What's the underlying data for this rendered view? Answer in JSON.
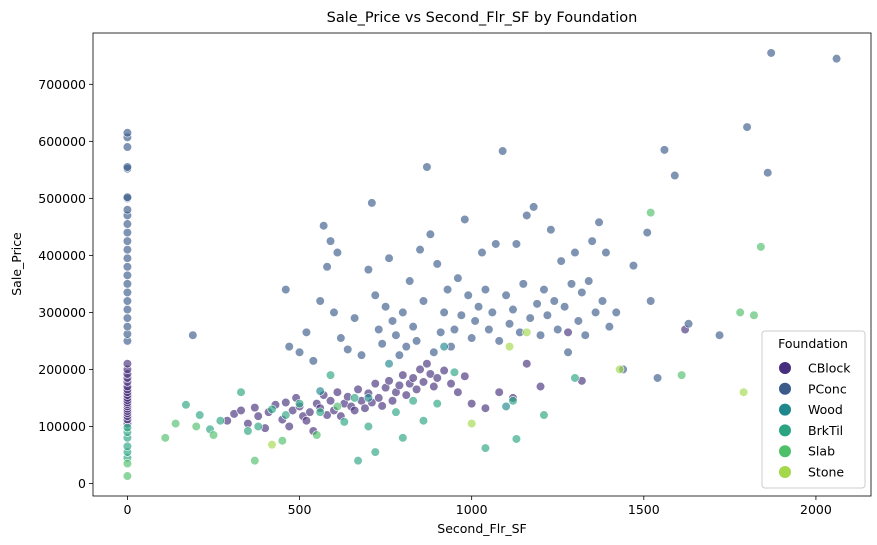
{
  "chart_data": {
    "type": "scatter",
    "title": "Sale_Price vs Second_Flr_SF by Foundation",
    "xlabel": "Second_Flr_SF",
    "ylabel": "Sale_Price",
    "xlim": [
      -100,
      2160
    ],
    "ylim": [
      -22000,
      790000
    ],
    "x_ticks": [
      0,
      500,
      1000,
      1500,
      2000
    ],
    "y_ticks": [
      0,
      100000,
      200000,
      300000,
      400000,
      500000,
      600000,
      700000
    ],
    "grid": false,
    "legend": {
      "title": "Foundation",
      "placement": "lower-right"
    },
    "series": [
      {
        "name": "CBlock",
        "color": "#472f7d",
        "points": [
          [
            0,
            105000
          ],
          [
            0,
            112000
          ],
          [
            0,
            118000
          ],
          [
            0,
            123000
          ],
          [
            0,
            127000
          ],
          [
            0,
            131000
          ],
          [
            0,
            135000
          ],
          [
            0,
            139000
          ],
          [
            0,
            142000
          ],
          [
            0,
            146000
          ],
          [
            0,
            150000
          ],
          [
            0,
            155000
          ],
          [
            0,
            160000
          ],
          [
            0,
            165000
          ],
          [
            0,
            170000
          ],
          [
            0,
            178000
          ],
          [
            0,
            185000
          ],
          [
            0,
            192000
          ],
          [
            0,
            200000
          ],
          [
            0,
            210000
          ],
          [
            290,
            110000
          ],
          [
            310,
            122000
          ],
          [
            330,
            128000
          ],
          [
            350,
            105000
          ],
          [
            370,
            133000
          ],
          [
            380,
            118000
          ],
          [
            400,
            97000
          ],
          [
            410,
            125000
          ],
          [
            430,
            138000
          ],
          [
            450,
            112000
          ],
          [
            460,
            142000
          ],
          [
            470,
            100000
          ],
          [
            480,
            128000
          ],
          [
            490,
            150000
          ],
          [
            500,
            135000
          ],
          [
            510,
            118000
          ],
          [
            520,
            110000
          ],
          [
            530,
            125000
          ],
          [
            540,
            92000
          ],
          [
            550,
            140000
          ],
          [
            560,
            132000
          ],
          [
            570,
            155000
          ],
          [
            580,
            120000
          ],
          [
            590,
            145000
          ],
          [
            600,
            128000
          ],
          [
            610,
            160000
          ],
          [
            620,
            118000
          ],
          [
            630,
            140000
          ],
          [
            640,
            152000
          ],
          [
            650,
            135000
          ],
          [
            660,
            128000
          ],
          [
            670,
            165000
          ],
          [
            680,
            145000
          ],
          [
            690,
            132000
          ],
          [
            700,
            158000
          ],
          [
            710,
            142000
          ],
          [
            720,
            175000
          ],
          [
            730,
            150000
          ],
          [
            740,
            136000
          ],
          [
            750,
            168000
          ],
          [
            760,
            180000
          ],
          [
            770,
            145000
          ],
          [
            780,
            160000
          ],
          [
            790,
            172000
          ],
          [
            800,
            190000
          ],
          [
            810,
            155000
          ],
          [
            820,
            175000
          ],
          [
            830,
            185000
          ],
          [
            840,
            165000
          ],
          [
            850,
            200000
          ],
          [
            860,
            178000
          ],
          [
            870,
            210000
          ],
          [
            880,
            192000
          ],
          [
            890,
            170000
          ],
          [
            900,
            185000
          ],
          [
            920,
            198000
          ],
          [
            940,
            175000
          ],
          [
            960,
            160000
          ],
          [
            980,
            188000
          ],
          [
            1000,
            140000
          ],
          [
            1040,
            132000
          ],
          [
            1080,
            160000
          ],
          [
            1120,
            150000
          ],
          [
            1160,
            210000
          ],
          [
            1200,
            170000
          ],
          [
            1280,
            265000
          ],
          [
            1320,
            180000
          ],
          [
            1620,
            270000
          ]
        ]
      },
      {
        "name": "PConc",
        "color": "#3b5b8b",
        "points": [
          [
            0,
            250000
          ],
          [
            0,
            262000
          ],
          [
            0,
            275000
          ],
          [
            0,
            290000
          ],
          [
            0,
            305000
          ],
          [
            0,
            320000
          ],
          [
            0,
            335000
          ],
          [
            0,
            350000
          ],
          [
            0,
            365000
          ],
          [
            0,
            380000
          ],
          [
            0,
            395000
          ],
          [
            0,
            410000
          ],
          [
            0,
            425000
          ],
          [
            0,
            440000
          ],
          [
            0,
            455000
          ],
          [
            0,
            470000
          ],
          [
            0,
            480000
          ],
          [
            0,
            500000
          ],
          [
            0,
            502000
          ],
          [
            0,
            552000
          ],
          [
            0,
            555000
          ],
          [
            0,
            590000
          ],
          [
            0,
            607000
          ],
          [
            0,
            615000
          ],
          [
            190,
            260000
          ],
          [
            460,
            340000
          ],
          [
            470,
            240000
          ],
          [
            500,
            230000
          ],
          [
            520,
            265000
          ],
          [
            540,
            215000
          ],
          [
            560,
            320000
          ],
          [
            570,
            452000
          ],
          [
            580,
            380000
          ],
          [
            590,
            425000
          ],
          [
            600,
            300000
          ],
          [
            610,
            405000
          ],
          [
            620,
            255000
          ],
          [
            640,
            235000
          ],
          [
            660,
            290000
          ],
          [
            680,
            225000
          ],
          [
            700,
            375000
          ],
          [
            710,
            492000
          ],
          [
            720,
            330000
          ],
          [
            730,
            270000
          ],
          [
            740,
            245000
          ],
          [
            750,
            310000
          ],
          [
            760,
            395000
          ],
          [
            770,
            285000
          ],
          [
            780,
            260000
          ],
          [
            790,
            225000
          ],
          [
            800,
            300000
          ],
          [
            810,
            240000
          ],
          [
            820,
            355000
          ],
          [
            830,
            275000
          ],
          [
            840,
            250000
          ],
          [
            850,
            410000
          ],
          [
            860,
            320000
          ],
          [
            870,
            555000
          ],
          [
            880,
            437000
          ],
          [
            890,
            230000
          ],
          [
            900,
            385000
          ],
          [
            910,
            265000
          ],
          [
            920,
            300000
          ],
          [
            930,
            340000
          ],
          [
            940,
            240000
          ],
          [
            950,
            270000
          ],
          [
            960,
            360000
          ],
          [
            970,
            295000
          ],
          [
            980,
            463000
          ],
          [
            990,
            330000
          ],
          [
            1000,
            255000
          ],
          [
            1010,
            285000
          ],
          [
            1020,
            310000
          ],
          [
            1030,
            405000
          ],
          [
            1040,
            340000
          ],
          [
            1050,
            270000
          ],
          [
            1060,
            300000
          ],
          [
            1070,
            420000
          ],
          [
            1080,
            250000
          ],
          [
            1090,
            583000
          ],
          [
            1100,
            330000
          ],
          [
            1110,
            280000
          ],
          [
            1120,
            305000
          ],
          [
            1130,
            420000
          ],
          [
            1140,
            265000
          ],
          [
            1150,
            350000
          ],
          [
            1160,
            470000
          ],
          [
            1170,
            290000
          ],
          [
            1180,
            485000
          ],
          [
            1190,
            315000
          ],
          [
            1200,
            260000
          ],
          [
            1210,
            340000
          ],
          [
            1220,
            295000
          ],
          [
            1230,
            445000
          ],
          [
            1240,
            320000
          ],
          [
            1250,
            270000
          ],
          [
            1260,
            390000
          ],
          [
            1270,
            310000
          ],
          [
            1280,
            230000
          ],
          [
            1290,
            350000
          ],
          [
            1300,
            405000
          ],
          [
            1310,
            285000
          ],
          [
            1320,
            335000
          ],
          [
            1330,
            260000
          ],
          [
            1340,
            355000
          ],
          [
            1350,
            425000
          ],
          [
            1360,
            300000
          ],
          [
            1370,
            458000
          ],
          [
            1380,
            320000
          ],
          [
            1390,
            405000
          ],
          [
            1400,
            275000
          ],
          [
            1420,
            300000
          ],
          [
            1440,
            200000
          ],
          [
            1470,
            382000
          ],
          [
            1510,
            440000
          ],
          [
            1520,
            320000
          ],
          [
            1540,
            185000
          ],
          [
            1560,
            585000
          ],
          [
            1590,
            540000
          ],
          [
            1630,
            280000
          ],
          [
            1720,
            260000
          ],
          [
            1800,
            625000
          ],
          [
            1860,
            545000
          ],
          [
            1870,
            755000
          ],
          [
            2060,
            745000
          ]
        ]
      },
      {
        "name": "Wood",
        "color": "#20878d",
        "points": [
          [
            560,
            162000
          ],
          [
            700,
            150000
          ],
          [
            760,
            210000
          ],
          [
            920,
            240000
          ],
          [
            1100,
            135000
          ]
        ]
      },
      {
        "name": "BrkTil",
        "color": "#2aa481",
        "points": [
          [
            0,
            45000
          ],
          [
            0,
            55000
          ],
          [
            0,
            65000
          ],
          [
            0,
            80000
          ],
          [
            0,
            90000
          ],
          [
            0,
            98000
          ],
          [
            170,
            138000
          ],
          [
            210,
            120000
          ],
          [
            240,
            95000
          ],
          [
            270,
            110000
          ],
          [
            330,
            160000
          ],
          [
            350,
            92000
          ],
          [
            380,
            100000
          ],
          [
            420,
            130000
          ],
          [
            460,
            120000
          ],
          [
            500,
            140000
          ],
          [
            560,
            125000
          ],
          [
            590,
            190000
          ],
          [
            630,
            108000
          ],
          [
            660,
            150000
          ],
          [
            670,
            40000
          ],
          [
            700,
            100000
          ],
          [
            720,
            55000
          ],
          [
            780,
            125000
          ],
          [
            800,
            80000
          ],
          [
            830,
            145000
          ],
          [
            860,
            110000
          ],
          [
            900,
            140000
          ],
          [
            950,
            195000
          ],
          [
            1040,
            62000
          ],
          [
            1120,
            145000
          ],
          [
            1130,
            78000
          ],
          [
            1210,
            120000
          ],
          [
            1300,
            185000
          ]
        ]
      },
      {
        "name": "Slab",
        "color": "#4fbf6a",
        "points": [
          [
            0,
            13000
          ],
          [
            0,
            35000
          ],
          [
            110,
            80000
          ],
          [
            140,
            105000
          ],
          [
            200,
            100000
          ],
          [
            250,
            85000
          ],
          [
            370,
            40000
          ],
          [
            450,
            75000
          ],
          [
            550,
            85000
          ],
          [
            610,
            135000
          ],
          [
            1520,
            475000
          ],
          [
            1610,
            190000
          ],
          [
            1780,
            300000
          ],
          [
            1820,
            295000
          ],
          [
            1840,
            415000
          ]
        ]
      },
      {
        "name": "Stone",
        "color": "#a2d84a",
        "points": [
          [
            420,
            68000
          ],
          [
            1000,
            105000
          ],
          [
            1110,
            240000
          ],
          [
            1160,
            265000
          ],
          [
            1430,
            200000
          ],
          [
            1790,
            160000
          ]
        ]
      }
    ]
  }
}
